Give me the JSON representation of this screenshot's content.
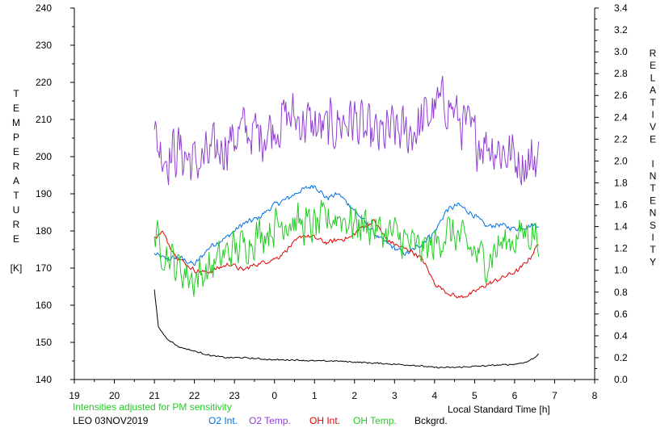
{
  "chart_data": {
    "type": "line",
    "xlabel": "Local Standard Time [h]",
    "left_ylabel_letters": [
      "T",
      "E",
      "M",
      "P",
      "E",
      "R",
      "A",
      "T",
      "U",
      "R",
      "E",
      "",
      "[K]"
    ],
    "right_ylabel_letters": [
      "R",
      "E",
      "L",
      "A",
      "T",
      "I",
      "V",
      "E",
      "",
      "I",
      "N",
      "T",
      "E",
      "N",
      "S",
      "I",
      "T",
      "Y"
    ],
    "x_ticks": [
      "19",
      "20",
      "21",
      "22",
      "23",
      "0",
      "1",
      "2",
      "3",
      "4",
      "5",
      "6",
      "7",
      "8"
    ],
    "xlim": [
      19,
      32
    ],
    "left_ylim": [
      140,
      240
    ],
    "left_ticks": [
      "140",
      "150",
      "160",
      "170",
      "180",
      "190",
      "200",
      "210",
      "220",
      "230",
      "240"
    ],
    "right_ylim": [
      0.0,
      3.4
    ],
    "right_ticks": [
      "0.0",
      "0.2",
      "0.4",
      "0.6",
      "0.8",
      "1.0",
      "1.2",
      "1.4",
      "1.6",
      "1.8",
      "2.0",
      "2.2",
      "2.4",
      "2.6",
      "2.8",
      "3.0",
      "3.2",
      "3.4"
    ],
    "grid": false,
    "note": "Intensities adjusted for PM sensitivity",
    "station": "LEO 03NOV2019",
    "series": [
      {
        "name": "O2 Int.",
        "color": "#0070e0",
        "axis": "right",
        "noise": 0.03,
        "x": [
          21.0,
          21.3,
          21.6,
          22.0,
          22.4,
          22.8,
          23.2,
          23.6,
          24.0,
          24.3,
          24.6,
          25.0,
          25.3,
          25.6,
          26.0,
          26.3,
          26.6,
          27.0,
          27.3,
          27.6,
          28.0,
          28.3,
          28.6,
          29.0,
          29.3,
          29.6,
          30.0,
          30.3,
          30.6
        ],
        "y": [
          1.15,
          1.1,
          1.12,
          1.05,
          1.22,
          1.3,
          1.42,
          1.48,
          1.6,
          1.65,
          1.72,
          1.78,
          1.66,
          1.7,
          1.55,
          1.42,
          1.3,
          1.2,
          1.15,
          1.22,
          1.35,
          1.55,
          1.6,
          1.5,
          1.4,
          1.42,
          1.38,
          1.4,
          1.42
        ]
      },
      {
        "name": "O2 Temp.",
        "color": "#9040d0",
        "axis": "left",
        "noise": 9,
        "x": [
          21.0,
          21.3,
          21.6,
          22.0,
          22.4,
          22.8,
          23.2,
          23.6,
          24.0,
          24.3,
          24.6,
          25.0,
          25.3,
          25.6,
          26.0,
          26.3,
          26.6,
          27.0,
          27.3,
          27.6,
          28.0,
          28.3,
          28.6,
          29.0,
          29.3,
          29.6,
          30.0,
          30.3,
          30.6
        ],
        "y": [
          205,
          200,
          202,
          198,
          200,
          204,
          207,
          206,
          208,
          211,
          210,
          208,
          207,
          209,
          210,
          206,
          205,
          207,
          206,
          208,
          213,
          215,
          210,
          205,
          204,
          202,
          200,
          198,
          200
        ]
      },
      {
        "name": "OH Int.",
        "color": "#e00000",
        "axis": "right",
        "noise": 0.025,
        "x": [
          21.0,
          21.2,
          21.5,
          21.8,
          22.0,
          22.3,
          22.6,
          22.9,
          23.2,
          23.5,
          23.8,
          24.1,
          24.4,
          24.7,
          25.0,
          25.3,
          25.6,
          25.9,
          26.2,
          26.5,
          26.8,
          27.1,
          27.4,
          27.7,
          28.0,
          28.3,
          28.6,
          28.9,
          29.2,
          29.5,
          29.8,
          30.1,
          30.4,
          30.6
        ],
        "y": [
          1.3,
          1.35,
          1.15,
          1.05,
          1.0,
          0.98,
          1.02,
          1.06,
          1.0,
          1.05,
          1.08,
          1.12,
          1.22,
          1.32,
          1.3,
          1.25,
          1.28,
          1.3,
          1.4,
          1.45,
          1.28,
          1.22,
          1.18,
          1.1,
          0.88,
          0.8,
          0.75,
          0.78,
          0.85,
          0.9,
          0.95,
          1.0,
          1.12,
          1.25
        ]
      },
      {
        "name": "OH Temp.",
        "color": "#22cc22",
        "axis": "left",
        "noise": 6.5,
        "x": [
          21.0,
          21.3,
          21.6,
          22.0,
          22.4,
          22.8,
          23.2,
          23.6,
          24.0,
          24.3,
          24.6,
          25.0,
          25.3,
          25.6,
          26.0,
          26.3,
          26.6,
          27.0,
          27.3,
          27.6,
          28.0,
          28.3,
          28.6,
          29.0,
          29.3,
          29.6,
          30.0,
          30.3,
          30.6
        ],
        "y": [
          178,
          174,
          170,
          167,
          170,
          174,
          176,
          179,
          181,
          183,
          182,
          181,
          183,
          184,
          182,
          182,
          180,
          179,
          177,
          175,
          176,
          180,
          178,
          174,
          172,
          176,
          178,
          180,
          179
        ]
      },
      {
        "name": "Bckgrd.",
        "color": "#000000",
        "axis": "right",
        "noise": 0.008,
        "x": [
          21.0,
          21.1,
          21.3,
          21.6,
          22.0,
          22.4,
          22.8,
          23.2,
          23.6,
          24.0,
          24.5,
          25.0,
          25.5,
          26.0,
          26.5,
          27.0,
          27.5,
          28.0,
          28.5,
          29.0,
          29.5,
          30.0,
          30.3,
          30.5,
          30.6
        ],
        "y": [
          0.82,
          0.48,
          0.38,
          0.3,
          0.26,
          0.22,
          0.2,
          0.2,
          0.19,
          0.18,
          0.18,
          0.17,
          0.17,
          0.16,
          0.15,
          0.14,
          0.13,
          0.11,
          0.11,
          0.12,
          0.13,
          0.14,
          0.16,
          0.2,
          0.24
        ]
      }
    ]
  }
}
